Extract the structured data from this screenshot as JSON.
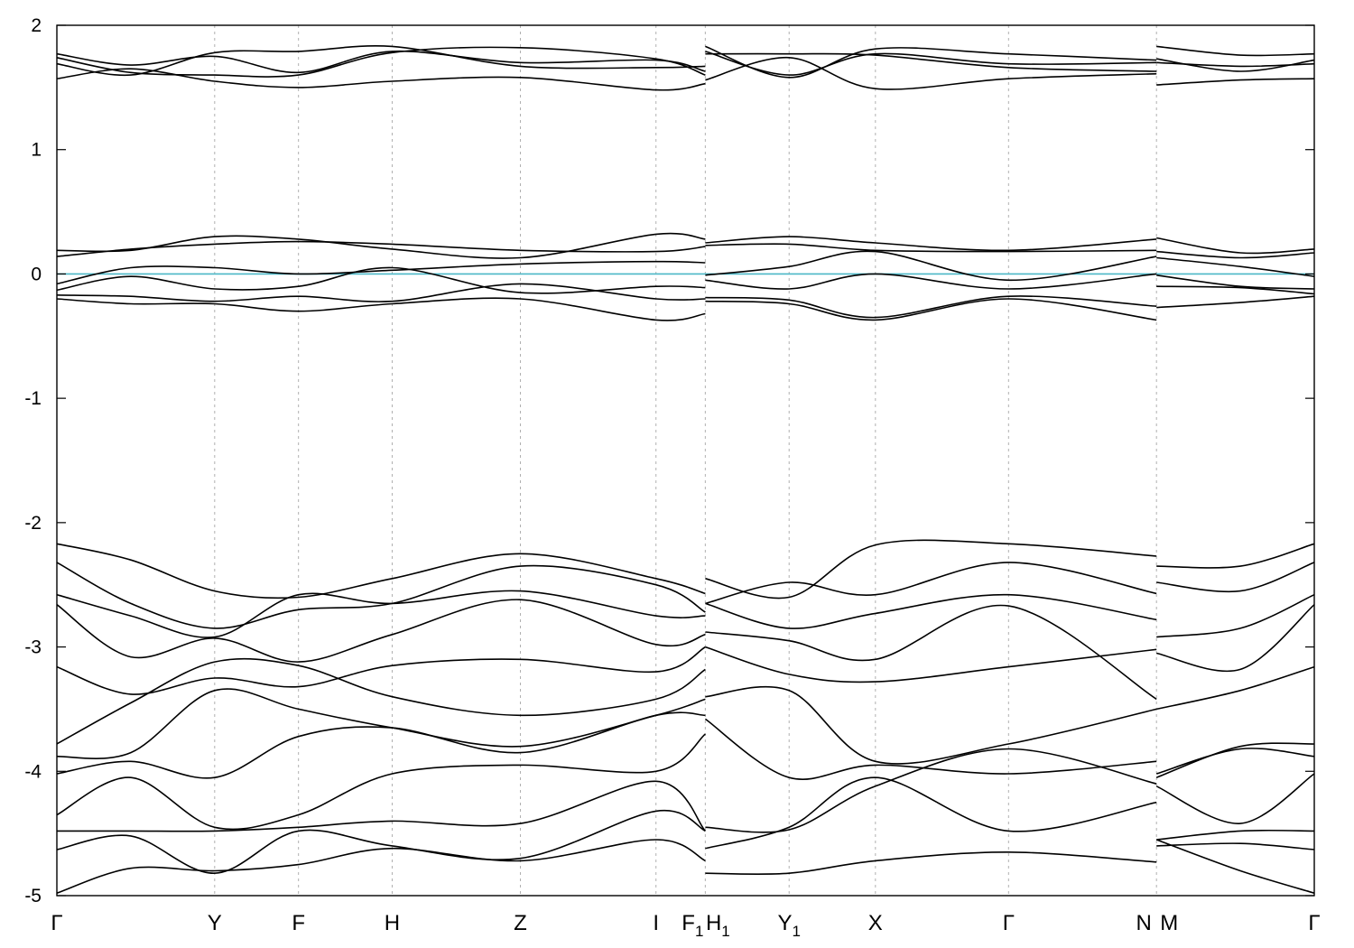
{
  "chart_data": {
    "type": "line",
    "title": "",
    "xlabel": "",
    "ylabel": "",
    "ylim": [
      -5,
      2
    ],
    "xlim": [
      0,
      25.5
    ],
    "yticks": [
      2,
      1,
      0,
      -1,
      -2,
      -3,
      -4,
      -5
    ],
    "ytick_labels": [
      "2",
      "1",
      "0",
      "-1",
      "-2",
      "-3",
      "-4",
      "-5"
    ],
    "grid": "vertical dashed lines at high-symmetry points",
    "high_symmetry_points": [
      {
        "label": "Γ",
        "sub": "",
        "x": 0
      },
      {
        "label": "Y",
        "sub": "",
        "x": 3.2
      },
      {
        "label": "F",
        "sub": "",
        "x": 4.9
      },
      {
        "label": "H",
        "sub": "",
        "x": 6.8
      },
      {
        "label": "Z",
        "sub": "",
        "x": 9.4
      },
      {
        "label": "I",
        "sub": "",
        "x": 12.15
      },
      {
        "label": "F",
        "sub": "1",
        "x": 13.15
      },
      {
        "label": "H",
        "sub": "1",
        "x": 13.15
      },
      {
        "label": "Y",
        "sub": "1",
        "x": 14.85
      },
      {
        "label": "X",
        "sub": "",
        "x": 16.6
      },
      {
        "label": "Γ",
        "sub": "",
        "x": 19.3
      },
      {
        "label": "N",
        "sub": "",
        "x": 22.3
      },
      {
        "label": "M",
        "sub": "",
        "x": 22.3
      },
      {
        "label": "Γ",
        "sub": "",
        "x": 25.5
      }
    ],
    "discontinuities": [
      13.15,
      22.3
    ],
    "fermi_level": 0,
    "fermi_color": "#4bb8c7",
    "band_color": "#000000",
    "series": [
      {
        "x": [
          0,
          1.5,
          3.2,
          4.9,
          6.8,
          9.4,
          12.15,
          13.15
        ],
        "values": [
          1.77,
          1.68,
          1.75,
          1.62,
          1.79,
          1.7,
          1.72,
          1.63
        ]
      },
      {
        "x": [
          0,
          1.5,
          3.2,
          4.9,
          6.8,
          9.4,
          12.15,
          13.15
        ],
        "values": [
          1.74,
          1.62,
          1.6,
          1.6,
          1.78,
          1.82,
          1.73,
          1.6
        ]
      },
      {
        "x": [
          0,
          1.5,
          3.2,
          4.9,
          6.8,
          9.4,
          12.15,
          13.15
        ],
        "values": [
          1.69,
          1.6,
          1.78,
          1.79,
          1.83,
          1.67,
          1.66,
          1.67
        ]
      },
      {
        "x": [
          0,
          1.5,
          3.2,
          4.9,
          6.8,
          9.4,
          12.15,
          13.15
        ],
        "values": [
          1.57,
          1.65,
          1.55,
          1.5,
          1.55,
          1.58,
          1.48,
          1.53
        ]
      },
      {
        "x": [
          13.15,
          14.85,
          16.6,
          19.3,
          22.3
        ],
        "values": [
          1.83,
          1.58,
          1.81,
          1.77,
          1.72
        ]
      },
      {
        "x": [
          13.15,
          14.85,
          16.6,
          19.3,
          22.3
        ],
        "values": [
          1.79,
          1.6,
          1.77,
          1.69,
          1.7
        ]
      },
      {
        "x": [
          13.15,
          14.85,
          16.6,
          19.3,
          22.3
        ],
        "values": [
          1.77,
          1.77,
          1.76,
          1.66,
          1.63
        ]
      },
      {
        "x": [
          13.15,
          14.85,
          16.6,
          19.3,
          22.3
        ],
        "values": [
          1.56,
          1.74,
          1.49,
          1.57,
          1.61
        ]
      },
      {
        "x": [
          22.3,
          24.0,
          25.5
        ],
        "values": [
          1.83,
          1.76,
          1.77
        ]
      },
      {
        "x": [
          22.3,
          24.0,
          25.5
        ],
        "values": [
          1.73,
          1.63,
          1.72
        ]
      },
      {
        "x": [
          22.3,
          24.0,
          25.5
        ],
        "values": [
          1.7,
          1.67,
          1.69
        ]
      },
      {
        "x": [
          22.3,
          24.0,
          25.5
        ],
        "values": [
          1.52,
          1.56,
          1.57
        ]
      },
      {
        "x": [
          0,
          1.5,
          3.2,
          4.9,
          6.8,
          9.4,
          12.15,
          13.15
        ],
        "values": [
          0.19,
          0.19,
          0.3,
          0.28,
          0.2,
          0.13,
          0.32,
          0.28
        ]
      },
      {
        "x": [
          0,
          1.5,
          3.2,
          4.9,
          6.8,
          9.4,
          12.15,
          13.15
        ],
        "values": [
          0.14,
          0.2,
          0.24,
          0.26,
          0.24,
          0.19,
          0.18,
          0.22
        ]
      },
      {
        "x": [
          0,
          1.5,
          3.2,
          4.9,
          6.8,
          9.4,
          12.15,
          13.15
        ],
        "values": [
          -0.08,
          0.05,
          0.05,
          0.0,
          0.03,
          0.08,
          0.1,
          0.09
        ]
      },
      {
        "x": [
          0,
          1.5,
          3.2,
          4.9,
          6.8,
          9.4,
          12.15,
          13.15
        ],
        "values": [
          -0.13,
          -0.02,
          -0.12,
          -0.1,
          0.05,
          -0.15,
          -0.1,
          -0.11
        ]
      },
      {
        "x": [
          0,
          1.5,
          3.2,
          4.9,
          6.8,
          9.4,
          12.15,
          13.15
        ],
        "values": [
          -0.17,
          -0.18,
          -0.22,
          -0.18,
          -0.22,
          -0.08,
          -0.2,
          -0.2
        ]
      },
      {
        "x": [
          0,
          1.5,
          3.2,
          4.9,
          6.8,
          9.4,
          12.15,
          13.15
        ],
        "values": [
          -0.2,
          -0.24,
          -0.24,
          -0.3,
          -0.24,
          -0.2,
          -0.37,
          -0.32
        ]
      },
      {
        "x": [
          13.15,
          14.85,
          16.6,
          19.3,
          22.3
        ],
        "values": [
          0.25,
          0.3,
          0.25,
          0.19,
          0.28
        ]
      },
      {
        "x": [
          13.15,
          14.85,
          16.6,
          19.3,
          22.3
        ],
        "values": [
          0.23,
          0.24,
          0.19,
          0.18,
          0.19
        ]
      },
      {
        "x": [
          13.15,
          14.85,
          16.6,
          19.3,
          22.3
        ],
        "values": [
          -0.01,
          0.06,
          0.18,
          -0.05,
          0.14
        ]
      },
      {
        "x": [
          13.15,
          14.85,
          16.6,
          19.3,
          22.3
        ],
        "values": [
          -0.05,
          -0.12,
          0.0,
          -0.12,
          0.0
        ]
      },
      {
        "x": [
          13.15,
          14.85,
          16.6,
          19.3,
          22.3
        ],
        "values": [
          -0.19,
          -0.21,
          -0.35,
          -0.18,
          -0.26
        ]
      },
      {
        "x": [
          13.15,
          14.85,
          16.6,
          19.3,
          22.3
        ],
        "values": [
          -0.22,
          -0.24,
          -0.37,
          -0.2,
          -0.37
        ]
      },
      {
        "x": [
          22.3,
          24.0,
          25.5
        ],
        "values": [
          0.29,
          0.17,
          0.2
        ]
      },
      {
        "x": [
          22.3,
          24.0,
          25.5
        ],
        "values": [
          0.18,
          0.13,
          0.17
        ]
      },
      {
        "x": [
          22.3,
          24.0,
          25.5
        ],
        "values": [
          0.13,
          0.06,
          -0.02
        ]
      },
      {
        "x": [
          22.3,
          24.0,
          25.5
        ],
        "values": [
          -0.01,
          -0.1,
          -0.12
        ]
      },
      {
        "x": [
          22.3,
          24.0,
          25.5
        ],
        "values": [
          -0.1,
          -0.11,
          -0.16
        ]
      },
      {
        "x": [
          22.3,
          24.0,
          25.5
        ],
        "values": [
          -0.27,
          -0.23,
          -0.18
        ]
      },
      {
        "x": [
          0,
          1.5,
          3.2,
          4.9,
          6.8,
          9.4,
          12.15,
          13.15
        ],
        "values": [
          -2.17,
          -2.3,
          -2.55,
          -2.6,
          -2.45,
          -2.25,
          -2.45,
          -2.57
        ]
      },
      {
        "x": [
          0,
          1.5,
          3.2,
          4.9,
          6.8,
          9.4,
          12.15,
          13.15
        ],
        "values": [
          -2.32,
          -2.65,
          -2.85,
          -2.7,
          -2.65,
          -2.35,
          -2.5,
          -2.72
        ]
      },
      {
        "x": [
          0,
          1.5,
          3.2,
          4.9,
          6.8,
          9.4,
          12.15,
          13.15
        ],
        "values": [
          -2.58,
          -2.75,
          -2.92,
          -2.58,
          -2.65,
          -2.55,
          -2.75,
          -2.75
        ]
      },
      {
        "x": [
          0,
          1.5,
          3.2,
          4.9,
          6.8,
          9.4,
          12.15,
          13.15
        ],
        "values": [
          -2.66,
          -3.08,
          -2.93,
          -3.12,
          -2.9,
          -2.62,
          -2.98,
          -2.9
        ]
      },
      {
        "x": [
          0,
          1.5,
          3.2,
          4.9,
          6.8,
          9.4,
          12.15,
          13.15
        ],
        "values": [
          -3.16,
          -3.38,
          -3.25,
          -3.32,
          -3.15,
          -3.1,
          -3.2,
          -3.0
        ]
      },
      {
        "x": [
          0,
          1.5,
          3.2,
          4.9,
          6.8,
          9.4,
          12.15,
          13.15
        ],
        "values": [
          -3.78,
          -3.45,
          -3.12,
          -3.15,
          -3.4,
          -3.55,
          -3.42,
          -3.18
        ]
      },
      {
        "x": [
          0,
          1.5,
          3.2,
          4.9,
          6.8,
          9.4,
          12.15,
          13.15
        ],
        "values": [
          -3.88,
          -3.85,
          -3.35,
          -3.5,
          -3.65,
          -3.8,
          -3.55,
          -3.42
        ]
      },
      {
        "x": [
          0,
          1.5,
          3.2,
          4.9,
          6.8,
          9.4,
          12.15,
          13.15
        ],
        "values": [
          -4.02,
          -3.92,
          -4.05,
          -3.72,
          -3.65,
          -3.85,
          -3.55,
          -3.55
        ]
      },
      {
        "x": [
          0,
          1.5,
          3.2,
          4.9,
          6.8,
          9.4,
          12.15,
          13.15
        ],
        "values": [
          -4.35,
          -4.05,
          -4.45,
          -4.35,
          -4.02,
          -3.95,
          -4.0,
          -3.7
        ]
      },
      {
        "x": [
          0,
          1.5,
          3.2,
          4.9,
          6.8,
          9.4,
          12.15,
          13.15
        ],
        "values": [
          -4.48,
          -4.48,
          -4.48,
          -4.45,
          -4.4,
          -4.42,
          -4.08,
          -4.48
        ]
      },
      {
        "x": [
          0,
          1.5,
          3.2,
          4.9,
          6.8,
          9.4,
          12.15,
          13.15
        ],
        "values": [
          -4.63,
          -4.52,
          -4.82,
          -4.48,
          -4.6,
          -4.7,
          -4.32,
          -4.48
        ]
      },
      {
        "x": [
          0,
          1.5,
          3.2,
          4.9,
          6.8,
          9.4,
          12.15,
          13.15
        ],
        "values": [
          -4.98,
          -4.78,
          -4.8,
          -4.75,
          -4.62,
          -4.72,
          -4.55,
          -4.72
        ]
      },
      {
        "x": [
          13.15,
          14.85,
          16.6,
          19.3,
          22.3
        ],
        "values": [
          -2.45,
          -2.6,
          -2.18,
          -2.17,
          -2.27
        ]
      },
      {
        "x": [
          13.15,
          14.85,
          16.6,
          19.3,
          22.3
        ],
        "values": [
          -2.65,
          -2.48,
          -2.58,
          -2.32,
          -2.57
        ]
      },
      {
        "x": [
          13.15,
          14.85,
          16.6,
          19.3,
          22.3
        ],
        "values": [
          -2.65,
          -2.85,
          -2.73,
          -2.58,
          -2.78
        ]
      },
      {
        "x": [
          13.15,
          14.85,
          16.6,
          19.3,
          22.3
        ],
        "values": [
          -2.88,
          -2.95,
          -3.1,
          -2.67,
          -3.42
        ]
      },
      {
        "x": [
          13.15,
          14.85,
          16.6,
          19.3,
          22.3
        ],
        "values": [
          -3.0,
          -3.22,
          -3.28,
          -3.16,
          -3.02
        ]
      },
      {
        "x": [
          13.15,
          14.85,
          16.6,
          19.3,
          22.3
        ],
        "values": [
          -3.4,
          -3.35,
          -3.92,
          -3.78,
          -3.5
        ]
      },
      {
        "x": [
          13.15,
          14.85,
          16.6,
          19.3,
          22.3
        ],
        "values": [
          -3.58,
          -4.05,
          -3.95,
          -4.02,
          -3.92
        ]
      },
      {
        "x": [
          13.15,
          14.85,
          16.6,
          19.3,
          22.3
        ],
        "values": [
          -4.45,
          -4.47,
          -4.12,
          -3.82,
          -4.1
        ]
      },
      {
        "x": [
          13.15,
          14.85,
          16.6,
          19.3,
          22.3
        ],
        "values": [
          -4.62,
          -4.45,
          -4.05,
          -4.48,
          -4.25
        ]
      },
      {
        "x": [
          13.15,
          14.85,
          16.6,
          19.3,
          22.3
        ],
        "values": [
          -4.82,
          -4.82,
          -4.72,
          -4.65,
          -4.73
        ]
      },
      {
        "x": [
          22.3,
          24.0,
          25.5
        ],
        "values": [
          -2.35,
          -2.35,
          -2.17
        ]
      },
      {
        "x": [
          22.3,
          24.0,
          25.5
        ],
        "values": [
          -2.48,
          -2.55,
          -2.32
        ]
      },
      {
        "x": [
          22.3,
          24.0,
          25.5
        ],
        "values": [
          -2.92,
          -2.85,
          -2.58
        ]
      },
      {
        "x": [
          22.3,
          24.0,
          25.5
        ],
        "values": [
          -3.05,
          -3.18,
          -2.66
        ]
      },
      {
        "x": [
          22.3,
          24.0,
          25.5
        ],
        "values": [
          -3.5,
          -3.35,
          -3.16
        ]
      },
      {
        "x": [
          22.3,
          24.0,
          25.5
        ],
        "values": [
          -4.05,
          -3.8,
          -3.78
        ]
      },
      {
        "x": [
          22.3,
          24.0,
          25.5
        ],
        "values": [
          -4.02,
          -3.82,
          -3.88
        ]
      },
      {
        "x": [
          22.3,
          24.0,
          25.5
        ],
        "values": [
          -4.12,
          -4.42,
          -4.02
        ]
      },
      {
        "x": [
          22.3,
          24.0,
          25.5
        ],
        "values": [
          -4.55,
          -4.48,
          -4.48
        ]
      },
      {
        "x": [
          22.3,
          24.0,
          25.5
        ],
        "values": [
          -4.6,
          -4.58,
          -4.63
        ]
      },
      {
        "x": [
          22.3,
          24.0,
          25.5
        ],
        "values": [
          -4.55,
          -4.8,
          -4.98
        ]
      }
    ]
  }
}
